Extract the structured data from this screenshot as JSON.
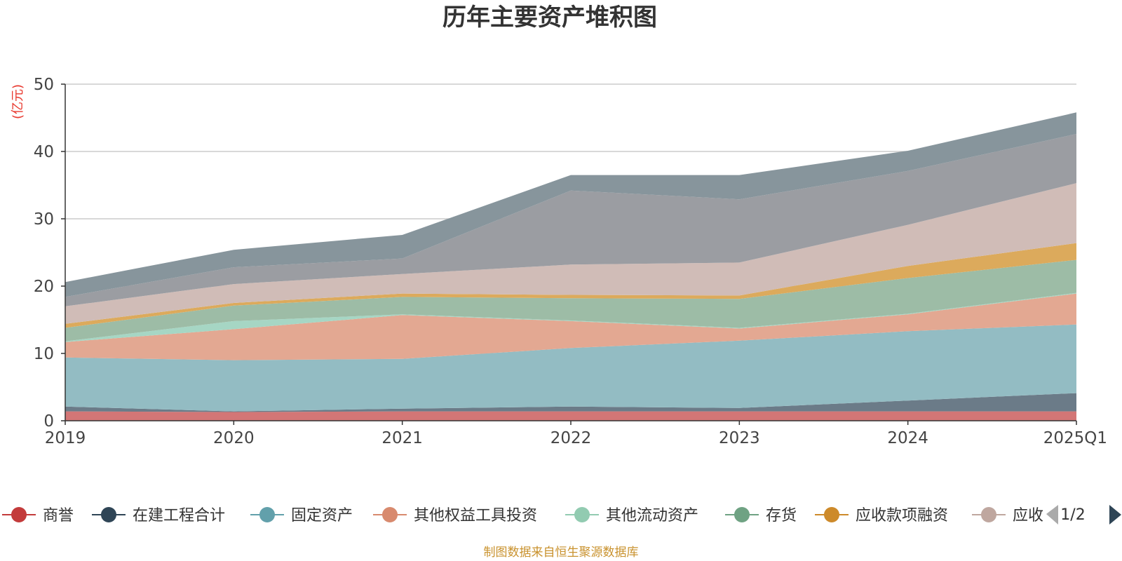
{
  "chart_data": {
    "type": "area",
    "stacked": true,
    "title": "历年主要资产堆积图",
    "ylabel": "(亿元)",
    "x": [
      "2019",
      "2020",
      "2021",
      "2022",
      "2023",
      "2024",
      "2025Q1"
    ],
    "yticks": [
      0,
      10,
      20,
      30,
      40,
      50
    ],
    "ylim": [
      0,
      50
    ],
    "grid": true,
    "series": [
      {
        "name": "商誉",
        "color": "#d37676",
        "values": [
          1.4,
          1.3,
          1.4,
          1.4,
          1.4,
          1.4,
          1.4
        ]
      },
      {
        "name": "在建工程合计",
        "color": "#6b7b88",
        "values": [
          0.7,
          0.1,
          0.4,
          0.7,
          0.5,
          1.6,
          2.7
        ]
      },
      {
        "name": "固定资产",
        "color": "#93bcc3",
        "values": [
          7.3,
          7.6,
          7.4,
          8.7,
          10.0,
          10.3,
          10.2
        ]
      },
      {
        "name": "其他权益工具投资",
        "color": "#e3a892",
        "values": [
          2.3,
          4.6,
          6.5,
          4.0,
          1.8,
          2.5,
          4.6
        ]
      },
      {
        "name": "其他流动资产",
        "color": "#a6d6c4",
        "values": [
          0.1,
          1.2,
          0.1,
          0.1,
          0.1,
          0.1,
          0.1
        ]
      },
      {
        "name": "存货",
        "color": "#9dbca6",
        "values": [
          2.0,
          2.3,
          2.6,
          3.3,
          4.3,
          5.3,
          4.9
        ]
      },
      {
        "name": "应收款项融资",
        "color": "#dcaa5c",
        "values": [
          0.6,
          0.4,
          0.5,
          0.5,
          0.5,
          1.8,
          2.5
        ]
      },
      {
        "name": "应收",
        "color": "#d0bcb7",
        "values": [
          2.6,
          2.8,
          2.9,
          4.5,
          4.9,
          6.1,
          8.9
        ]
      },
      {
        "name": "",
        "color": "#9b9da2",
        "values": [
          1.4,
          2.5,
          2.3,
          11.0,
          9.4,
          8.0,
          7.3
        ]
      },
      {
        "name": "",
        "color": "#87959c",
        "values": [
          2.2,
          2.6,
          3.5,
          2.3,
          3.6,
          3.0,
          3.2
        ]
      }
    ]
  },
  "legend": {
    "visible_count": 8,
    "page": "1/2"
  },
  "source_note": "制图数据来自恒生聚源数据库",
  "colors": {
    "axis": "#333333",
    "grid": "#cccccc",
    "legend_marker": [
      "#c33b3b",
      "#2f4556",
      "#62a0ab",
      "#d88a6e",
      "#92cbb1",
      "#6fa283",
      "#cd8a2a",
      "#bfa79f"
    ],
    "pager_active": "#2f4556",
    "pager_inactive": "#aaaaaa"
  }
}
